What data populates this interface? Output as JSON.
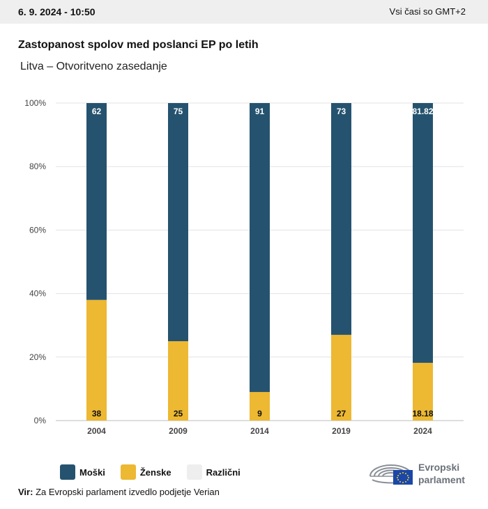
{
  "header": {
    "datetime": "6. 9. 2024 - 10:50",
    "timezone_note": "Vsi časi so GMT+2"
  },
  "colors": {
    "male": "#25536f",
    "female": "#edb832",
    "other": "#eeeeef"
  },
  "chart_data": {
    "type": "bar",
    "stacked": true,
    "title": "Zastopanost spolov med poslanci EP po letih",
    "subtitle": "Litva – Otvoritveno zasedanje",
    "categories": [
      "2004",
      "2009",
      "2014",
      "2019",
      "2024"
    ],
    "series": [
      {
        "name": "Moški",
        "values": [
          62,
          75,
          91,
          73,
          81.82
        ]
      },
      {
        "name": "Ženske",
        "values": [
          38,
          25,
          9,
          27,
          18.18
        ]
      },
      {
        "name": "Različni",
        "values": [
          0,
          0,
          0,
          0,
          0
        ]
      }
    ],
    "data_labels": {
      "male": [
        "62",
        "75",
        "91",
        "73",
        "81.82"
      ],
      "female": [
        "38",
        "25",
        "9",
        "27",
        "18.18"
      ]
    },
    "yticks": [
      "0%",
      "20%",
      "40%",
      "60%",
      "80%",
      "100%"
    ],
    "ylim": [
      0,
      100
    ],
    "grid": true,
    "legend_position": "bottom-left"
  },
  "legend": {
    "male_label": "Moški",
    "female_label": "Ženske",
    "other_label": "Različni"
  },
  "source": {
    "prefix": "Vir:",
    "text": "Za Evropski parlament izvedlo podjetje Verian"
  },
  "logo": {
    "line1": "Evropski",
    "line2": "parlament",
    "icon": "parliament-hemicycle-icon"
  }
}
